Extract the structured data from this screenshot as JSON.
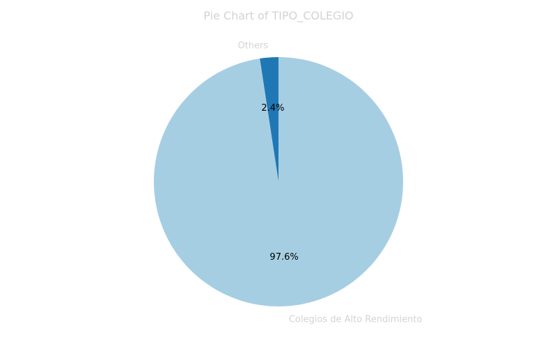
{
  "chart_data": {
    "type": "pie",
    "title": "Pie Chart of TIPO_COLEGIO",
    "slices": [
      {
        "label": "Others",
        "value": 2.4,
        "pct_label": "2.4%",
        "color": "#1f78b4"
      },
      {
        "label": "Colegios de Alto Rendimiento",
        "value": 97.6,
        "pct_label": "97.6%",
        "color": "#a6cee3"
      }
    ],
    "start_angle_deg": 90,
    "direction": "counterclockwise",
    "text_color": "#d3d3d3",
    "pct_text_color": "#000000"
  }
}
